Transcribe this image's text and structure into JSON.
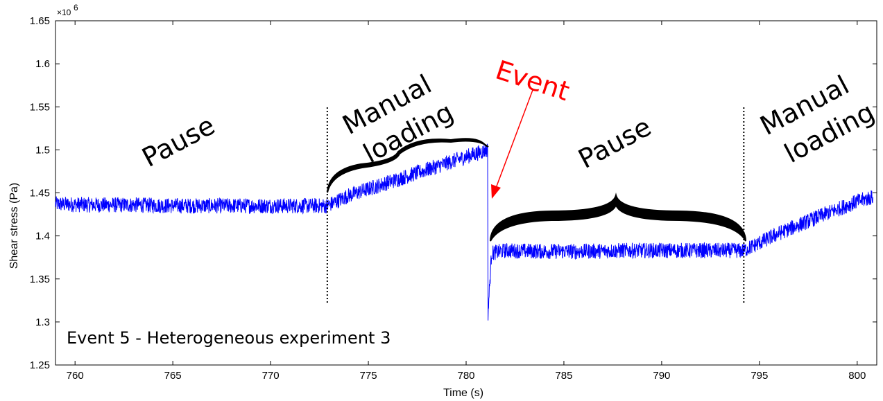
{
  "chart_data": {
    "type": "line",
    "title": "",
    "xlabel": "Time (s)",
    "ylabel": "Shear stress (Pa)",
    "y_exponent_label": "×10",
    "y_exponent_power": "6",
    "xlim": [
      759,
      801
    ],
    "ylim": [
      1.25,
      1.65
    ],
    "x_ticks": [
      760,
      765,
      770,
      775,
      780,
      785,
      790,
      795,
      800
    ],
    "x_tick_labels": [
      "760",
      "765",
      "770",
      "775",
      "780",
      "785",
      "790",
      "795",
      "800"
    ],
    "y_ticks": [
      1.25,
      1.3,
      1.35,
      1.4,
      1.45,
      1.5,
      1.55,
      1.6,
      1.65
    ],
    "y_tick_labels": [
      "1.25",
      "1.3",
      "1.35",
      "1.4",
      "1.45",
      "1.5",
      "1.55",
      "1.6",
      "1.65"
    ],
    "grid": false,
    "series": [
      {
        "color": "#0000ff",
        "x": [
          759,
          761,
          763,
          765,
          767,
          769,
          771,
          772.9,
          774,
          776,
          778,
          780,
          781.1,
          781.12,
          781.3,
          782,
          784,
          786,
          788,
          790,
          792,
          794.2,
          796,
          798,
          800,
          800.8
        ],
        "y": [
          1.437,
          1.436,
          1.436,
          1.435,
          1.435,
          1.435,
          1.435,
          1.435,
          1.447,
          1.462,
          1.477,
          1.492,
          1.5,
          1.31,
          1.38,
          1.383,
          1.382,
          1.382,
          1.383,
          1.383,
          1.383,
          1.383,
          1.403,
          1.422,
          1.44,
          1.445
        ],
        "noise_amplitude": 0.009
      }
    ],
    "vlines_x": [
      772.9,
      794.2
    ],
    "annotations": {
      "pause_1": "Pause",
      "manual_loading_1_line1": "Manual",
      "manual_loading_1_line2": "loading",
      "event": "Event",
      "pause_2": "Pause",
      "manual_loading_2_line1": "Manual",
      "manual_loading_2_line2": "loading",
      "caption": "Event 5 - Heterogeneous experiment 3"
    },
    "colors": {
      "series": "#0000ff",
      "event_arrow": "#ff0000",
      "brace": "#000000"
    }
  }
}
